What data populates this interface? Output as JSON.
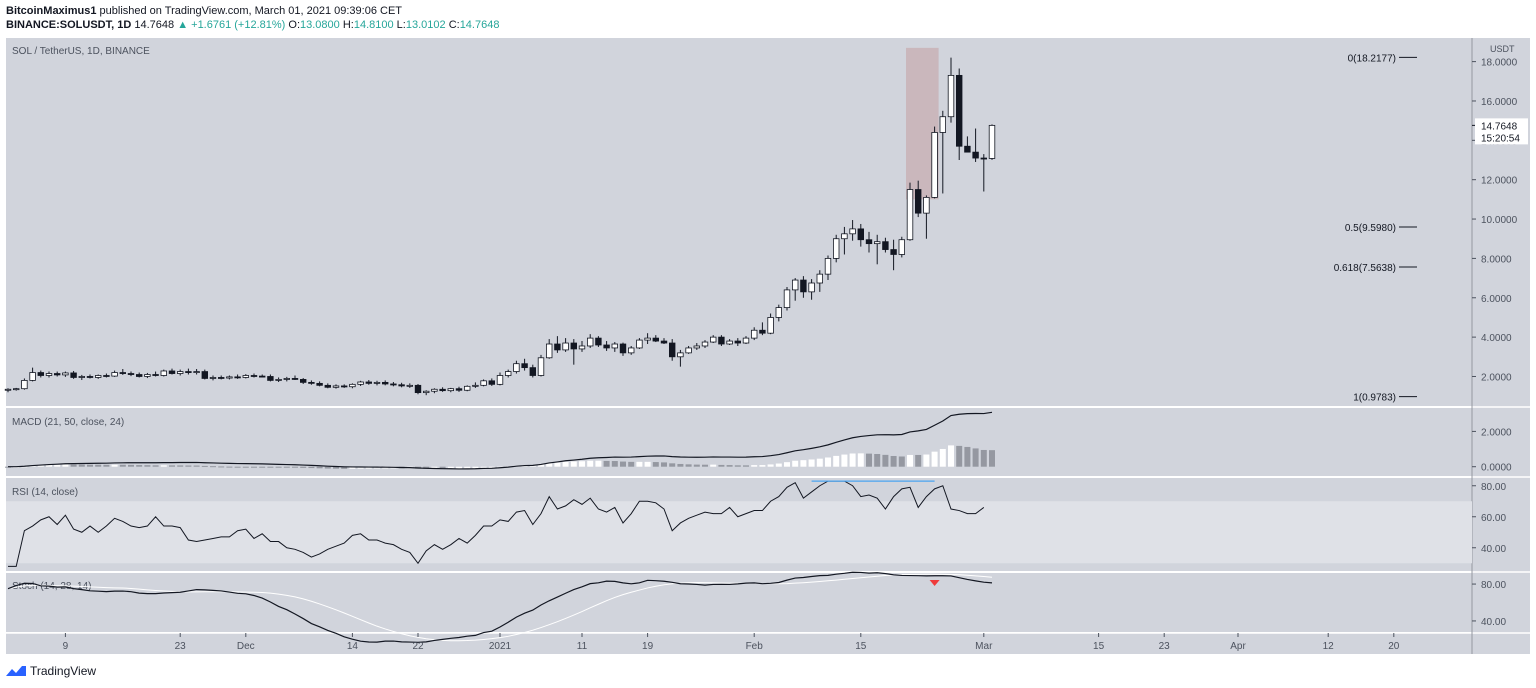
{
  "header": {
    "author": "BitcoinMaximus1",
    "published": " published on TradingView.com, March 01, 2021 09:39:06 CET",
    "symbol": "BINANCE:SOLUSDT, 1D",
    "last": "14.7648",
    "change_arrow": "▲",
    "change": "+1.6761 (+12.81%)",
    "o_label": "O:",
    "o": "13.0800",
    "h_label": "H:",
    "h": "14.8100",
    "l_label": "L:",
    "l": "13.0102",
    "c_label": "C:",
    "c": "14.7648"
  },
  "footer": {
    "brand": "TradingView"
  },
  "chart_data": {
    "type": "candlestick",
    "title": "SOL / TetherUS, 1D, BINANCE",
    "currency": "USDT",
    "ylim": [
      0.5,
      19.2
    ],
    "y_ticks": [
      "2.0000",
      "4.0000",
      "6.0000",
      "8.0000",
      "10.0000",
      "12.0000",
      "14.0000",
      "16.0000",
      "18.0000"
    ],
    "y_tick_values": [
      2,
      4,
      6,
      8,
      10,
      12,
      14,
      16,
      18
    ],
    "last_price_label": "14.7648",
    "countdown": "15:20:54",
    "x_ticks": [
      "9",
      "23",
      "Dec",
      "14",
      "22",
      "2021",
      "11",
      "19",
      "Feb",
      "15",
      "Mar",
      "15",
      "23",
      "Apr",
      "12",
      "20"
    ],
    "x_tick_days": [
      7,
      21,
      29,
      42,
      50,
      60,
      70,
      78,
      91,
      104,
      119,
      133,
      141,
      150,
      161,
      169
    ],
    "start_date": "2020-11-02",
    "fib_levels": [
      {
        "label": "0(18.2177)",
        "value": 18.2177
      },
      {
        "label": "0.5(9.5980)",
        "value": 9.598
      },
      {
        "label": "0.618(7.5638)",
        "value": 7.5638
      },
      {
        "label": "1(0.9783)",
        "value": 0.9783
      }
    ],
    "highlight_zone": {
      "from_day": 110,
      "to_day": 113,
      "low": 11.0,
      "high": 18.7,
      "color": "#c7aeb2"
    },
    "candles": [
      [
        1.3,
        1.4,
        1.2,
        1.35
      ],
      [
        1.35,
        1.42,
        1.28,
        1.38
      ],
      [
        1.38,
        1.9,
        1.33,
        1.8
      ],
      [
        1.8,
        2.45,
        1.75,
        2.2
      ],
      [
        2.2,
        2.3,
        1.95,
        2.05
      ],
      [
        2.05,
        2.25,
        1.95,
        2.15
      ],
      [
        2.15,
        2.25,
        2.0,
        2.08
      ],
      [
        2.08,
        2.25,
        1.98,
        2.18
      ],
      [
        2.18,
        2.28,
        1.88,
        1.95
      ],
      [
        1.95,
        2.08,
        1.82,
        2.0
      ],
      [
        2.0,
        2.1,
        1.9,
        1.95
      ],
      [
        1.95,
        2.1,
        1.88,
        2.05
      ],
      [
        2.05,
        2.15,
        1.95,
        2.02
      ],
      [
        2.02,
        2.3,
        1.98,
        2.2
      ],
      [
        2.2,
        2.38,
        2.08,
        2.15
      ],
      [
        2.15,
        2.25,
        2.02,
        2.1
      ],
      [
        2.1,
        2.2,
        1.95,
        2.0
      ],
      [
        2.0,
        2.18,
        1.92,
        2.1
      ],
      [
        2.1,
        2.25,
        2.0,
        2.05
      ],
      [
        2.05,
        2.35,
        2.0,
        2.28
      ],
      [
        2.28,
        2.4,
        2.1,
        2.15
      ],
      [
        2.15,
        2.35,
        2.05,
        2.25
      ],
      [
        2.25,
        2.4,
        2.1,
        2.2
      ],
      [
        2.2,
        2.38,
        2.1,
        2.25
      ],
      [
        2.25,
        2.35,
        1.85,
        1.9
      ],
      [
        1.9,
        2.05,
        1.8,
        1.95
      ],
      [
        1.95,
        2.05,
        1.85,
        1.92
      ],
      [
        1.92,
        2.05,
        1.85,
        1.98
      ],
      [
        1.98,
        2.1,
        1.88,
        1.95
      ],
      [
        1.95,
        2.12,
        1.9,
        2.05
      ],
      [
        2.05,
        2.15,
        1.95,
        2.02
      ],
      [
        2.02,
        2.1,
        1.95,
        2.0
      ],
      [
        2.0,
        2.1,
        1.75,
        1.8
      ],
      [
        1.8,
        1.95,
        1.72,
        1.85
      ],
      [
        1.85,
        1.98,
        1.75,
        1.9
      ],
      [
        1.9,
        2.05,
        1.82,
        1.85
      ],
      [
        1.85,
        1.92,
        1.62,
        1.7
      ],
      [
        1.7,
        1.8,
        1.58,
        1.65
      ],
      [
        1.65,
        1.75,
        1.5,
        1.55
      ],
      [
        1.55,
        1.65,
        1.4,
        1.45
      ],
      [
        1.45,
        1.6,
        1.38,
        1.52
      ],
      [
        1.52,
        1.6,
        1.42,
        1.48
      ],
      [
        1.48,
        1.65,
        1.4,
        1.6
      ],
      [
        1.6,
        1.78,
        1.52,
        1.72
      ],
      [
        1.72,
        1.82,
        1.58,
        1.65
      ],
      [
        1.65,
        1.78,
        1.55,
        1.7
      ],
      [
        1.7,
        1.8,
        1.55,
        1.62
      ],
      [
        1.62,
        1.72,
        1.5,
        1.58
      ],
      [
        1.58,
        1.68,
        1.45,
        1.52
      ],
      [
        1.52,
        1.65,
        1.42,
        1.55
      ],
      [
        1.55,
        1.62,
        1.1,
        1.18
      ],
      [
        1.18,
        1.3,
        1.05,
        1.25
      ],
      [
        1.25,
        1.4,
        1.15,
        1.35
      ],
      [
        1.35,
        1.45,
        1.22,
        1.28
      ],
      [
        1.28,
        1.42,
        1.2,
        1.38
      ],
      [
        1.38,
        1.48,
        1.22,
        1.3
      ],
      [
        1.3,
        1.55,
        1.25,
        1.5
      ],
      [
        1.5,
        1.7,
        1.42,
        1.55
      ],
      [
        1.55,
        1.85,
        1.5,
        1.78
      ],
      [
        1.78,
        1.9,
        1.52,
        1.6
      ],
      [
        1.6,
        2.2,
        1.55,
        2.05
      ],
      [
        2.05,
        2.35,
        1.95,
        2.25
      ],
      [
        2.25,
        2.8,
        2.15,
        2.65
      ],
      [
        2.65,
        2.9,
        2.3,
        2.45
      ],
      [
        2.45,
        2.6,
        1.95,
        2.05
      ],
      [
        2.05,
        3.1,
        2.0,
        2.95
      ],
      [
        2.95,
        3.9,
        2.9,
        3.65
      ],
      [
        3.65,
        4.05,
        3.2,
        3.35
      ],
      [
        3.35,
        3.95,
        3.25,
        3.7
      ],
      [
        3.7,
        3.9,
        2.6,
        3.4
      ],
      [
        3.4,
        3.8,
        3.25,
        3.55
      ],
      [
        3.55,
        4.15,
        3.45,
        3.95
      ],
      [
        3.95,
        4.05,
        3.5,
        3.6
      ],
      [
        3.6,
        3.8,
        3.3,
        3.45
      ],
      [
        3.45,
        3.75,
        3.25,
        3.65
      ],
      [
        3.65,
        3.72,
        3.05,
        3.2
      ],
      [
        3.2,
        3.55,
        3.1,
        3.45
      ],
      [
        3.45,
        3.95,
        3.4,
        3.85
      ],
      [
        3.85,
        4.2,
        3.65,
        3.95
      ],
      [
        3.95,
        4.1,
        3.75,
        3.8
      ],
      [
        3.8,
        3.95,
        3.65,
        3.7
      ],
      [
        3.7,
        3.9,
        2.8,
        3.0
      ],
      [
        3.0,
        3.35,
        2.5,
        3.2
      ],
      [
        3.2,
        3.55,
        3.15,
        3.45
      ],
      [
        3.45,
        3.7,
        3.35,
        3.55
      ],
      [
        3.55,
        3.85,
        3.45,
        3.75
      ],
      [
        3.75,
        4.1,
        3.7,
        4.0
      ],
      [
        4.0,
        4.1,
        3.55,
        3.65
      ],
      [
        3.65,
        3.9,
        3.6,
        3.8
      ],
      [
        3.8,
        3.95,
        3.55,
        3.7
      ],
      [
        3.7,
        4.05,
        3.65,
        3.95
      ],
      [
        3.95,
        4.5,
        3.85,
        4.35
      ],
      [
        4.35,
        4.75,
        4.1,
        4.2
      ],
      [
        4.2,
        5.2,
        4.15,
        5.0
      ],
      [
        5.0,
        5.65,
        4.8,
        5.5
      ],
      [
        5.5,
        6.55,
        5.35,
        6.4
      ],
      [
        6.4,
        7.0,
        5.85,
        6.9
      ],
      [
        6.9,
        7.1,
        6.0,
        6.3
      ],
      [
        6.3,
        6.95,
        5.9,
        6.75
      ],
      [
        6.75,
        7.4,
        6.3,
        7.2
      ],
      [
        7.2,
        8.15,
        6.9,
        8.0
      ],
      [
        8.0,
        9.2,
        7.8,
        9.0
      ],
      [
        9.0,
        9.6,
        8.2,
        9.25
      ],
      [
        9.25,
        9.95,
        8.9,
        9.5
      ],
      [
        9.5,
        9.75,
        8.6,
        8.95
      ],
      [
        8.95,
        9.35,
        8.3,
        8.75
      ],
      [
        8.75,
        9.2,
        7.7,
        8.85
      ],
      [
        8.85,
        9.05,
        8.3,
        8.45
      ],
      [
        8.45,
        8.95,
        7.4,
        8.2
      ],
      [
        8.2,
        9.1,
        8.05,
        8.95
      ],
      [
        8.95,
        11.85,
        8.9,
        11.5
      ],
      [
        11.5,
        11.95,
        10.1,
        10.3
      ],
      [
        10.3,
        11.2,
        9.0,
        11.1
      ],
      [
        11.1,
        14.7,
        11.05,
        14.4
      ],
      [
        14.4,
        15.5,
        11.3,
        15.2
      ],
      [
        15.2,
        18.2,
        14.9,
        17.3
      ],
      [
        17.3,
        17.65,
        13.0,
        13.7
      ],
      [
        13.7,
        14.2,
        13.4,
        13.4
      ],
      [
        13.4,
        14.6,
        12.9,
        13.1
      ],
      [
        13.1,
        13.3,
        11.4,
        13.08
      ],
      [
        13.08,
        14.81,
        13.01,
        14.76
      ]
    ],
    "macd": {
      "name": "MACD (21, 50, close, 24)",
      "y_ticks": [
        "0.0000",
        "2.0000"
      ],
      "y_tick_values": [
        0,
        2
      ]
    },
    "rsi": {
      "name": "RSI (14, close)",
      "y_ticks": [
        "40.00",
        "60.00",
        "80.00"
      ],
      "y_tick_values": [
        40,
        60,
        80
      ],
      "band": [
        30,
        70
      ],
      "values": [
        28,
        28,
        51,
        54,
        58,
        60,
        55,
        61,
        52,
        50,
        54,
        50,
        54,
        59,
        57,
        54,
        53,
        54,
        60,
        54,
        54,
        53,
        45,
        44,
        45,
        46,
        47,
        47,
        51,
        52,
        46,
        49,
        44,
        44,
        40,
        39,
        37,
        34,
        36,
        39,
        41,
        43,
        48,
        49,
        45,
        45,
        43,
        42,
        39,
        37,
        30,
        38,
        42,
        39,
        42,
        46,
        43,
        48,
        54,
        54,
        58,
        57,
        63,
        64,
        55,
        62,
        73,
        65,
        67,
        71,
        68,
        72,
        65,
        63,
        66,
        56,
        62,
        70,
        70,
        69,
        65,
        51,
        56,
        59,
        61,
        63,
        62,
        62,
        66,
        60,
        62,
        64,
        64,
        70,
        73,
        79,
        82,
        72,
        76,
        80,
        83,
        83,
        83,
        80,
        73,
        74,
        72,
        65,
        73,
        78,
        79,
        66,
        73,
        78,
        80,
        65,
        64,
        62,
        62,
        66
      ],
      "divergence": {
        "from_day": 98,
        "to_day": 113,
        "value": 83,
        "color": "#4aa3f0"
      }
    },
    "stoch": {
      "name": "Stoch (14, 28, 14)",
      "y_ticks": [
        "40.00",
        "80.00"
      ],
      "y_tick_values": [
        40,
        80
      ],
      "signal_day": 113,
      "signal_color": "#ef3b3b"
    }
  }
}
